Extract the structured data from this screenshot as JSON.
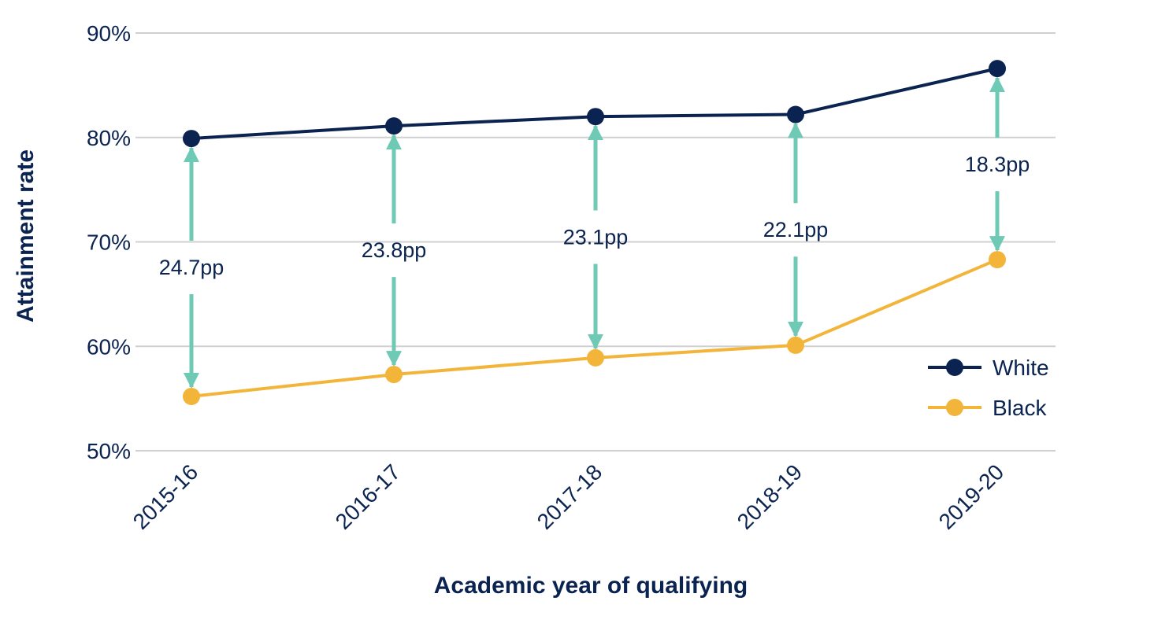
{
  "chart_data": {
    "type": "line",
    "title": "",
    "xlabel": "Academic year of qualifying",
    "ylabel": "Attainment rate",
    "categories": [
      "2015-16",
      "2016-17",
      "2017-18",
      "2018-19",
      "2019-20"
    ],
    "ylim": [
      50,
      90
    ],
    "yticks": [
      50,
      60,
      70,
      80,
      90
    ],
    "ytick_labels": [
      "50%",
      "60%",
      "70%",
      "80%",
      "90%"
    ],
    "grid": true,
    "legend_position": "bottom-right",
    "series": [
      {
        "name": "White",
        "color": "#0b2350",
        "values": [
          79.9,
          81.1,
          82.0,
          82.2,
          86.6
        ]
      },
      {
        "name": "Black",
        "color": "#f2b53a",
        "values": [
          55.2,
          57.3,
          58.9,
          60.1,
          68.3
        ]
      }
    ],
    "annotations": {
      "arrow_color": "#6fcab5",
      "gap_labels": [
        "24.7pp",
        "23.8pp",
        "23.1pp",
        "22.1pp",
        "18.3pp"
      ]
    }
  }
}
